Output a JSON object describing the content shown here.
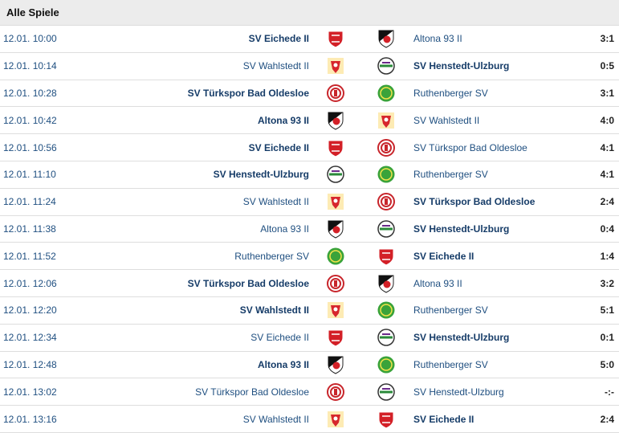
{
  "header": {
    "title": "Alle Spiele"
  },
  "matches": [
    {
      "time": "12.01. 10:00",
      "home": "SV Eichede II",
      "away": "Altona 93 II",
      "score": "3:1"
    },
    {
      "time": "12.01. 10:14",
      "home": "SV Wahlstedt II",
      "away": "SV Henstedt-Ulzburg",
      "score": "0:5"
    },
    {
      "time": "12.01. 10:28",
      "home": "SV Türkspor Bad Oldesloe",
      "away": "Ruthenberger SV",
      "score": "3:1"
    },
    {
      "time": "12.01. 10:42",
      "home": "Altona 93 II",
      "away": "SV Wahlstedt II",
      "score": "4:0"
    },
    {
      "time": "12.01. 10:56",
      "home": "SV Eichede II",
      "away": "SV Türkspor Bad Oldesloe",
      "score": "4:1"
    },
    {
      "time": "12.01. 11:10",
      "home": "SV Henstedt-Ulzburg",
      "away": "Ruthenberger SV",
      "score": "4:1"
    },
    {
      "time": "12.01. 11:24",
      "home": "SV Wahlstedt II",
      "away": "SV Türkspor Bad Oldesloe",
      "score": "2:4"
    },
    {
      "time": "12.01. 11:38",
      "home": "Altona 93 II",
      "away": "SV Henstedt-Ulzburg",
      "score": "0:4"
    },
    {
      "time": "12.01. 11:52",
      "home": "Ruthenberger SV",
      "away": "SV Eichede II",
      "score": "1:4"
    },
    {
      "time": "12.01. 12:06",
      "home": "SV Türkspor Bad Oldesloe",
      "away": "Altona 93 II",
      "score": "3:2"
    },
    {
      "time": "12.01. 12:20",
      "home": "SV Wahlstedt II",
      "away": "Ruthenberger SV",
      "score": "5:1"
    },
    {
      "time": "12.01. 12:34",
      "home": "SV Eichede II",
      "away": "SV Henstedt-Ulzburg",
      "score": "0:1"
    },
    {
      "time": "12.01. 12:48",
      "home": "Altona 93 II",
      "away": "Ruthenberger SV",
      "score": "5:0"
    },
    {
      "time": "12.01. 13:02",
      "home": "SV Türkspor Bad Oldesloe",
      "away": "SV Henstedt-Ulzburg",
      "score": "-:-"
    },
    {
      "time": "12.01. 13:16",
      "home": "SV Wahlstedt II",
      "away": "SV Eichede II",
      "score": "2:4"
    }
  ]
}
